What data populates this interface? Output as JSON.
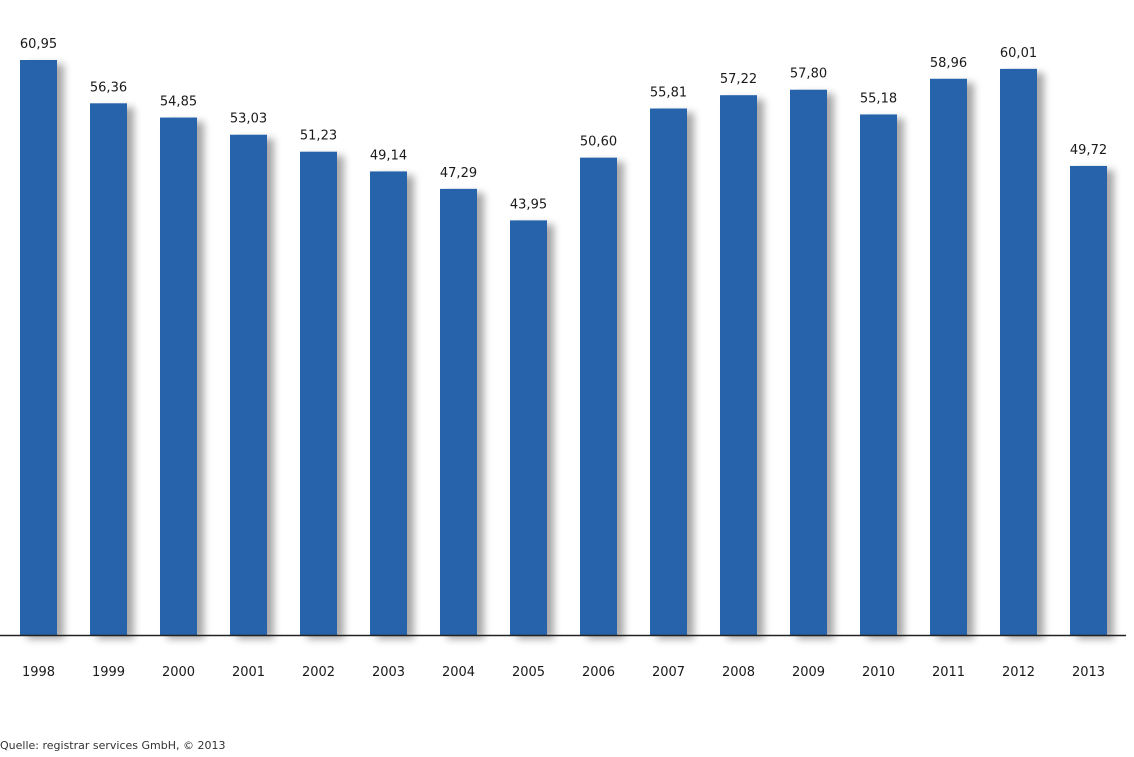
{
  "chart_data": {
    "type": "bar",
    "categories": [
      "1998",
      "1999",
      "2000",
      "2001",
      "2002",
      "2003",
      "2004",
      "2005",
      "2006",
      "2007",
      "2008",
      "2009",
      "2010",
      "2011",
      "2012",
      "2013"
    ],
    "values": [
      60.95,
      56.36,
      54.85,
      53.03,
      51.23,
      49.14,
      47.29,
      43.95,
      50.6,
      55.81,
      57.22,
      57.8,
      55.18,
      58.96,
      60.01,
      49.72
    ],
    "value_labels": [
      "60,95",
      "56,36",
      "54,85",
      "53,03",
      "51,23",
      "49,14",
      "47,29",
      "43,95",
      "50,60",
      "55,81",
      "57,22",
      "57,80",
      "55,18",
      "58,96",
      "60,01",
      "49,72"
    ],
    "title": "",
    "xlabel": "",
    "ylabel": "",
    "ylim": [
      0,
      60.95
    ],
    "grid": false,
    "bar_color": "#2563ab",
    "axis_color": "#222222"
  },
  "source": "Quelle: registrar services GmbH, © 2013"
}
